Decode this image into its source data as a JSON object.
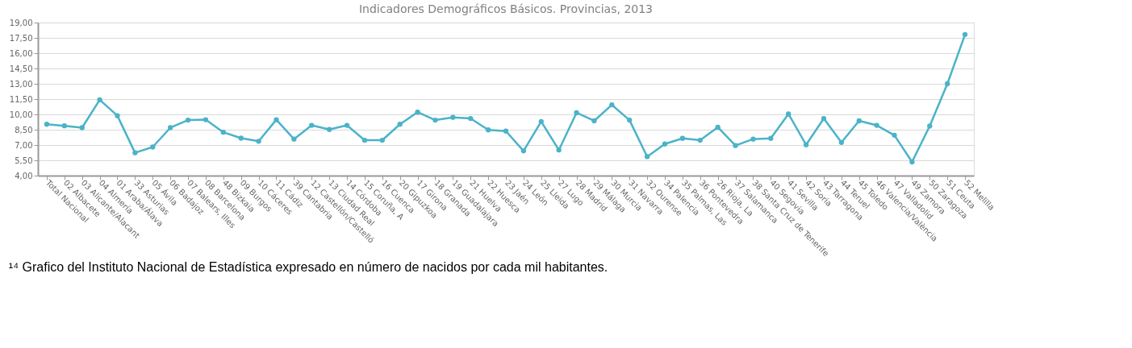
{
  "chart_data": {
    "type": "line",
    "title": "Indicadores Demográficos Básicos. Provincias, 2013",
    "categories": [
      "Total Nacional",
      "02 Albacete",
      "03 Alicante/Alacant",
      "04 Almería",
      "01 Araba/Álava",
      "33 Asturias",
      "05 Ávila",
      "06 Badajoz",
      "07 Balears, Illes",
      "08 Barcelona",
      "48 Bizkaia",
      "09 Burgos",
      "10 Cáceres",
      "11 Cádiz",
      "39 Cantabria",
      "12 Castellón/Castelló",
      "13 Ciudad Real",
      "14 Córdoba",
      "15 Coruña, A",
      "16 Cuenca",
      "20 Gipuzkoa",
      "17 Girona",
      "18 Granada",
      "19 Guadalajara",
      "21 Huelva",
      "22 Huesca",
      "23 Jaén",
      "24 León",
      "25 Lleida",
      "27 Lugo",
      "28 Madrid",
      "29 Málaga",
      "30 Murcia",
      "31 Navarra",
      "32 Ourense",
      "34 Palencia",
      "35 Palmas, Las",
      "36 Pontevedra",
      "26 Rioja, La",
      "37 Salamanca",
      "38 Santa Cruz de Tenerife",
      "40 Segovia",
      "41 Sevilla",
      "42 Soria",
      "43 Tarragona",
      "44 Teruel",
      "45 Toledo",
      "46 Valencia/València",
      "47 Valladolid",
      "49 Zamora",
      "50 Zaragoza",
      "51 Ceuta",
      "52 Melilla"
    ],
    "series": [
      {
        "color": "#4bb3c8",
        "values": [
          9.03,
          8.88,
          8.7,
          11.43,
          9.87,
          6.24,
          6.8,
          8.7,
          9.44,
          9.48,
          8.25,
          7.67,
          7.37,
          9.48,
          7.58,
          8.93,
          8.52,
          8.93,
          7.47,
          7.47,
          9.03,
          10.22,
          9.44,
          9.71,
          9.6,
          8.48,
          8.36,
          6.42,
          9.3,
          6.51,
          10.16,
          9.37,
          10.94,
          9.44,
          5.86,
          7.1,
          7.65,
          7.47,
          8.74,
          6.95,
          7.58,
          7.65,
          10.04,
          7.02,
          9.6,
          7.25,
          9.37,
          8.93,
          7.96,
          5.34,
          8.86,
          13.0,
          17.83
        ]
      }
    ],
    "ylim": [
      4,
      19
    ],
    "yticks": [
      {
        "value": 4,
        "label": "4,00"
      },
      {
        "value": 5.5,
        "label": "5,50"
      },
      {
        "value": 7,
        "label": "7,00"
      },
      {
        "value": 8.5,
        "label": "8,50"
      },
      {
        "value": 10,
        "label": "10,00"
      },
      {
        "value": 11.5,
        "label": "11,50"
      },
      {
        "value": 13,
        "label": "13,00"
      },
      {
        "value": 14.5,
        "label": "14,50"
      },
      {
        "value": 16,
        "label": "16,00"
      },
      {
        "value": 17.5,
        "label": "17,50"
      },
      {
        "value": 19,
        "label": "19,00"
      }
    ],
    "grid": "y",
    "marker": "circle",
    "line_style": "solid",
    "annotations": [
      "¹⁴ Grafico del Instituto Nacional de Estadística expresado en número de nacidos por cada mil habitantes."
    ]
  }
}
